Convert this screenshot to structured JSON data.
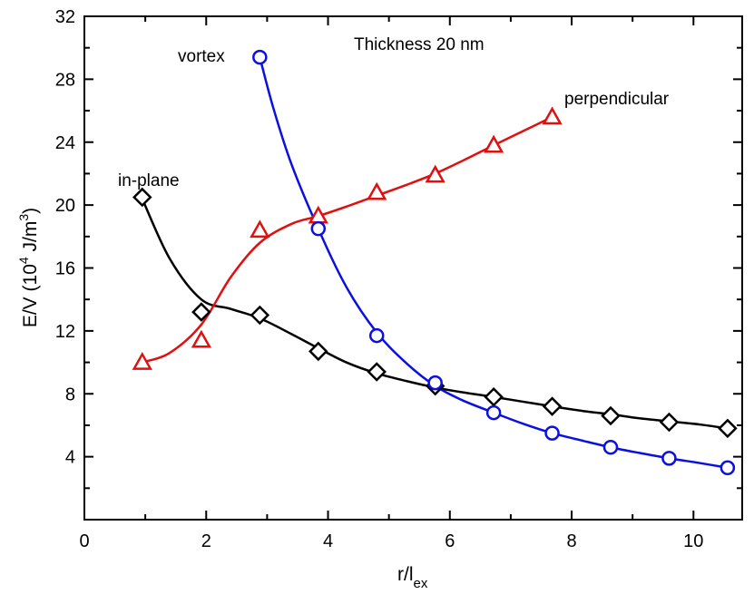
{
  "chart_data": {
    "type": "line",
    "title": "",
    "annotation": "Thickness 20 nm",
    "xlabel": {
      "main": "r/l",
      "sub": "ex"
    },
    "ylabel": {
      "pre": "E/V (10",
      "sup1": "4",
      "mid": " J/m",
      "sup2": "3",
      "post": ")"
    },
    "xlim": [
      0,
      10.8
    ],
    "ylim": [
      0,
      32
    ],
    "xticks": [
      0,
      2,
      4,
      6,
      8,
      10
    ],
    "yticks": [
      4,
      8,
      12,
      16,
      20,
      24,
      28,
      32
    ],
    "grid": false,
    "series": [
      {
        "name": "in-plane",
        "color": "#000000",
        "marker": "diamond",
        "x": [
          0.95,
          1.92,
          2.88,
          3.84,
          4.8,
          5.76,
          6.72,
          7.68,
          8.64,
          9.6,
          10.56
        ],
        "y": [
          20.5,
          13.2,
          13.0,
          10.7,
          9.4,
          8.5,
          7.8,
          7.2,
          6.6,
          6.2,
          5.8
        ],
        "curve_x": [
          0.95,
          1.4,
          1.92,
          2.4,
          2.88,
          3.4,
          3.84,
          4.3,
          4.8,
          5.3,
          5.76,
          6.2,
          6.72,
          7.2,
          7.68,
          8.2,
          8.64,
          9.1,
          9.6,
          10.1,
          10.56
        ],
        "curve_y": [
          20.4,
          16.6,
          14.0,
          13.4,
          12.8,
          11.8,
          10.9,
          10.0,
          9.3,
          8.8,
          8.4,
          8.1,
          7.8,
          7.5,
          7.2,
          6.9,
          6.7,
          6.45,
          6.25,
          6.05,
          5.8
        ]
      },
      {
        "name": "perpendicular",
        "color": "#e01010",
        "marker": "triangle",
        "x": [
          0.95,
          1.92,
          2.88,
          3.84,
          4.8,
          5.76,
          6.72,
          7.68
        ],
        "y": [
          10.0,
          11.4,
          18.4,
          19.3,
          20.8,
          21.9,
          23.8,
          25.6
        ],
        "curve_x": [
          0.95,
          1.4,
          1.92,
          2.4,
          2.88,
          3.4,
          3.84,
          4.3,
          4.8,
          5.3,
          5.76,
          6.2,
          6.72,
          7.2,
          7.68
        ],
        "curve_y": [
          10.0,
          10.6,
          12.4,
          15.4,
          17.6,
          18.8,
          19.3,
          19.9,
          20.6,
          21.3,
          22.0,
          22.8,
          23.8,
          24.7,
          25.6
        ]
      },
      {
        "name": "vortex",
        "color": "#0a10e0",
        "marker": "circle",
        "x": [
          2.88,
          3.84,
          4.8,
          5.76,
          6.72,
          7.68,
          8.64,
          9.6,
          10.56
        ],
        "y": [
          29.4,
          18.5,
          11.7,
          8.7,
          6.8,
          5.5,
          4.6,
          3.9,
          3.3
        ],
        "curve_x": [
          2.88,
          3.1,
          3.4,
          3.84,
          4.3,
          4.8,
          5.3,
          5.76,
          6.2,
          6.72,
          7.2,
          7.68,
          8.2,
          8.64,
          9.1,
          9.6,
          10.1,
          10.56
        ],
        "curve_y": [
          29.4,
          26.2,
          22.6,
          18.5,
          14.8,
          11.9,
          9.9,
          8.5,
          7.6,
          6.8,
          6.1,
          5.5,
          5.0,
          4.6,
          4.25,
          3.9,
          3.6,
          3.3
        ]
      }
    ]
  }
}
